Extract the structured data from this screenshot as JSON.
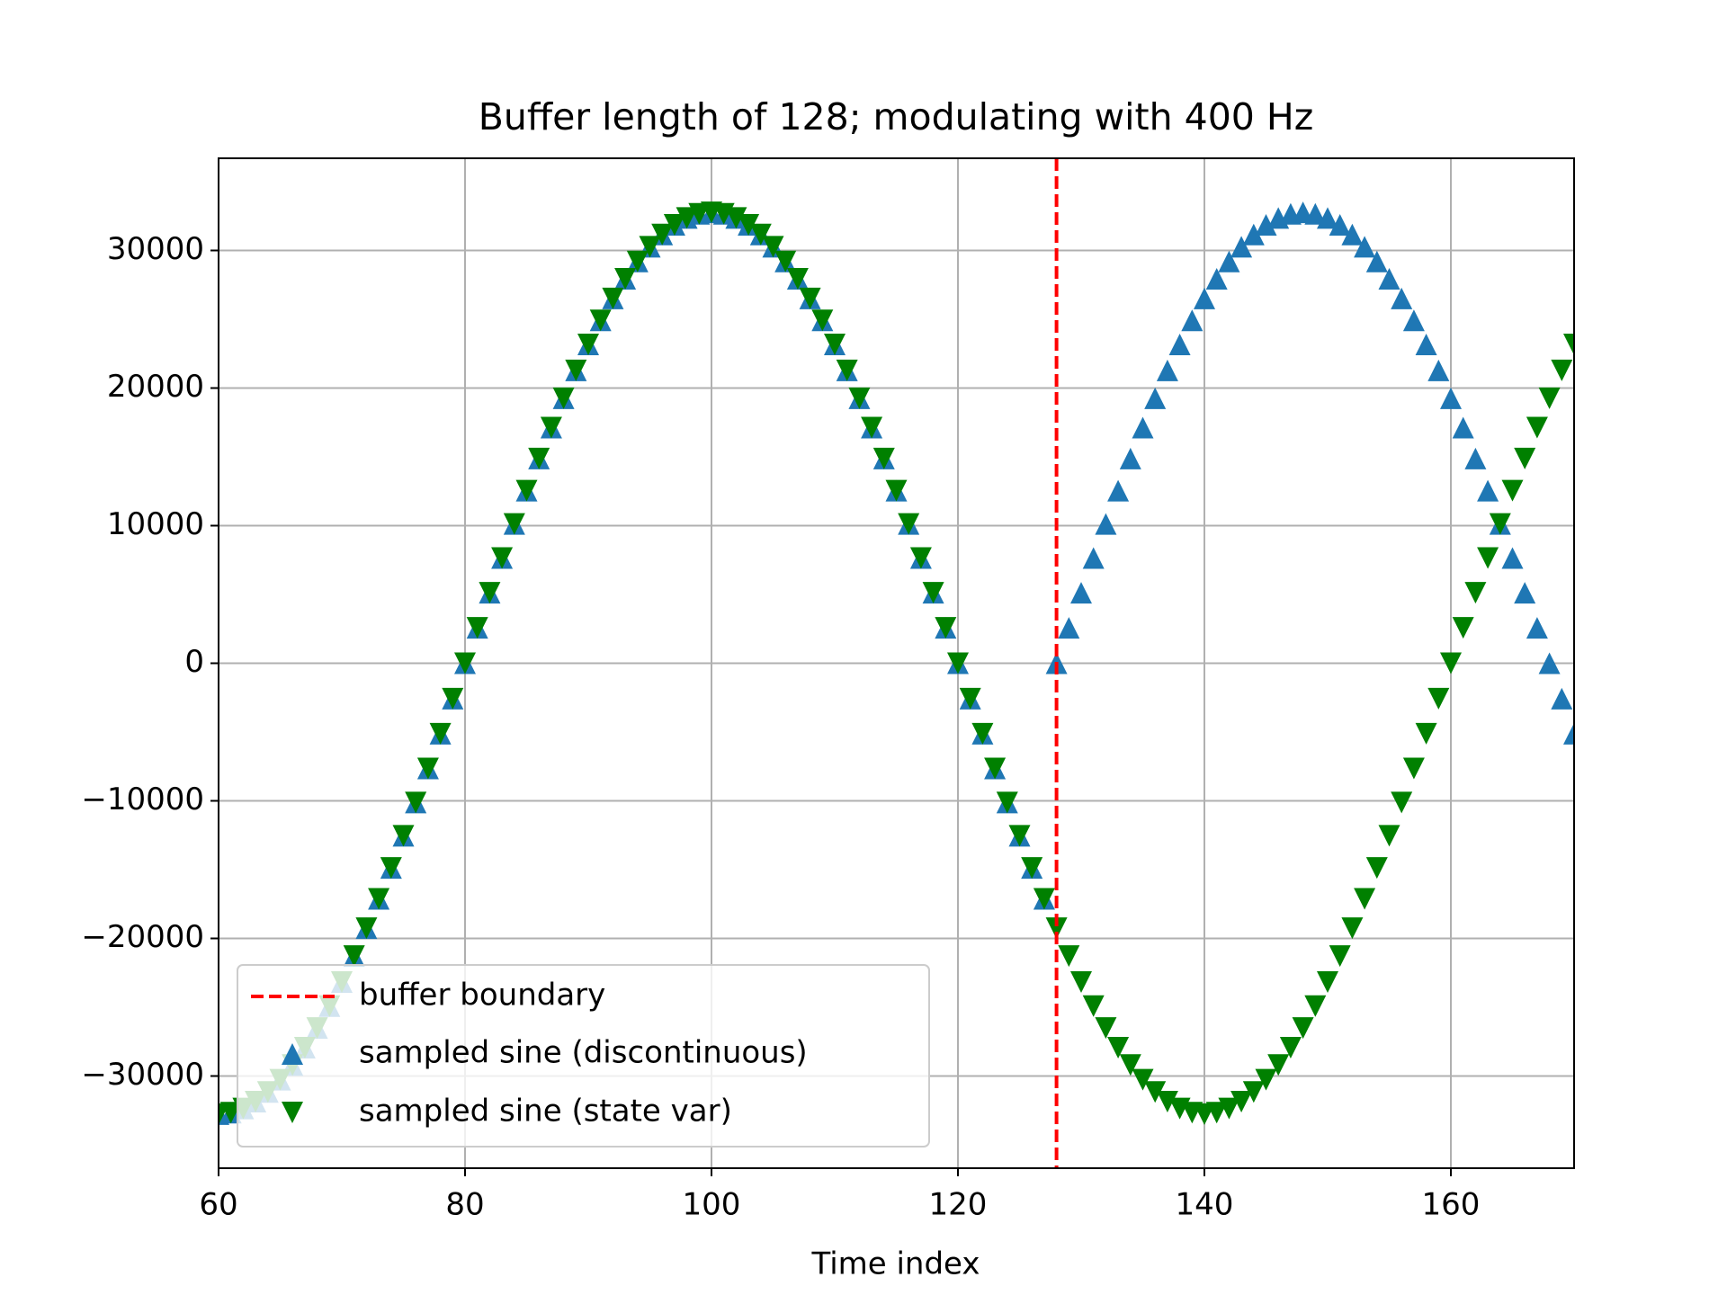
{
  "chart_data": {
    "type": "scatter",
    "title": "Buffer length of 128; modulating with 400 Hz",
    "x_label": "Time index",
    "xlim": [
      60,
      170
    ],
    "ylim": [
      -36700,
      36700
    ],
    "xticks": [
      60,
      80,
      100,
      120,
      140,
      160
    ],
    "yticks": [
      {
        "value": -30000,
        "label": "−30000"
      },
      {
        "value": -20000,
        "label": "−20000"
      },
      {
        "value": -10000,
        "label": "−10000"
      },
      0,
      10000,
      20000,
      30000
    ],
    "grid": true,
    "legend": "lower left",
    "vline": {
      "name": "buffer boundary",
      "x": 128,
      "color": "#ff0000"
    },
    "x": [
      60,
      61,
      62,
      63,
      64,
      65,
      66,
      67,
      68,
      69,
      70,
      71,
      72,
      73,
      74,
      75,
      76,
      77,
      78,
      79,
      80,
      81,
      82,
      83,
      84,
      85,
      86,
      87,
      88,
      89,
      90,
      91,
      92,
      93,
      94,
      95,
      96,
      97,
      98,
      99,
      100,
      101,
      102,
      103,
      104,
      105,
      106,
      107,
      108,
      109,
      110,
      111,
      112,
      113,
      114,
      115,
      116,
      117,
      118,
      119,
      120,
      121,
      122,
      123,
      124,
      125,
      126,
      127,
      128,
      129,
      130,
      131,
      132,
      133,
      134,
      135,
      136,
      137,
      138,
      139,
      140,
      141,
      142,
      143,
      144,
      145,
      146,
      147,
      148,
      149,
      150,
      151,
      152,
      153,
      154,
      155,
      156,
      157,
      158,
      159,
      160,
      161,
      162,
      163,
      164,
      165,
      166,
      167,
      168,
      169,
      170
    ],
    "series": [
      {
        "name": "sampled sine (discontinuous)",
        "color": "#1f77b4",
        "marker": "^",
        "values": [
          -32767,
          -32666,
          -32364,
          -31862,
          -31163,
          -30273,
          -29196,
          -27938,
          -26509,
          -24916,
          -23170,
          -21281,
          -19260,
          -17121,
          -14876,
          -12539,
          -10126,
          -7649,
          -5126,
          -2571,
          0,
          2571,
          5126,
          7649,
          10126,
          12539,
          14876,
          17121,
          19260,
          21281,
          23170,
          24916,
          26509,
          27938,
          29196,
          30273,
          31163,
          31862,
          32364,
          32666,
          32767,
          32666,
          32364,
          31862,
          31163,
          30273,
          29196,
          27938,
          26509,
          24916,
          23170,
          21281,
          19260,
          17121,
          14876,
          12539,
          10126,
          7649,
          5126,
          2571,
          0,
          -2571,
          -5126,
          -7649,
          -10126,
          -12539,
          -14876,
          -17121,
          0,
          2571,
          5126,
          7649,
          10126,
          12539,
          14876,
          17121,
          19260,
          21281,
          23170,
          24916,
          26509,
          27938,
          29196,
          30273,
          31163,
          31862,
          32364,
          32666,
          32767,
          32666,
          32364,
          31862,
          31163,
          30273,
          29196,
          27938,
          26509,
          24916,
          23170,
          21281,
          19260,
          17121,
          14876,
          12539,
          10126,
          7649,
          5126,
          2571,
          0,
          -2571,
          -5126
        ]
      },
      {
        "name": "sampled sine (state var)",
        "color": "#008000",
        "marker": "v",
        "values": [
          -32767,
          -32666,
          -32364,
          -31862,
          -31163,
          -30273,
          -29196,
          -27938,
          -26509,
          -24916,
          -23170,
          -21281,
          -19260,
          -17121,
          -14876,
          -12539,
          -10126,
          -7649,
          -5126,
          -2571,
          0,
          2571,
          5126,
          7649,
          10126,
          12539,
          14876,
          17121,
          19260,
          21281,
          23170,
          24916,
          26509,
          27938,
          29196,
          30273,
          31163,
          31862,
          32364,
          32666,
          32767,
          32666,
          32364,
          31862,
          31163,
          30273,
          29196,
          27938,
          26509,
          24916,
          23170,
          21281,
          19260,
          17121,
          14876,
          12539,
          10126,
          7649,
          5126,
          2571,
          0,
          -2571,
          -5126,
          -7649,
          -10126,
          -12539,
          -14876,
          -17121,
          -19260,
          -21281,
          -23170,
          -24916,
          -26509,
          -27938,
          -29196,
          -30273,
          -31163,
          -31862,
          -32364,
          -32666,
          -32767,
          -32666,
          -32364,
          -31862,
          -31163,
          -30273,
          -29196,
          -27938,
          -26509,
          -24916,
          -23170,
          -21281,
          -19260,
          -17121,
          -14876,
          -12539,
          -10126,
          -7649,
          -5126,
          -2571,
          0,
          2571,
          5126,
          7649,
          10126,
          12539,
          14876,
          17121,
          19260,
          21281,
          23170
        ]
      }
    ]
  }
}
